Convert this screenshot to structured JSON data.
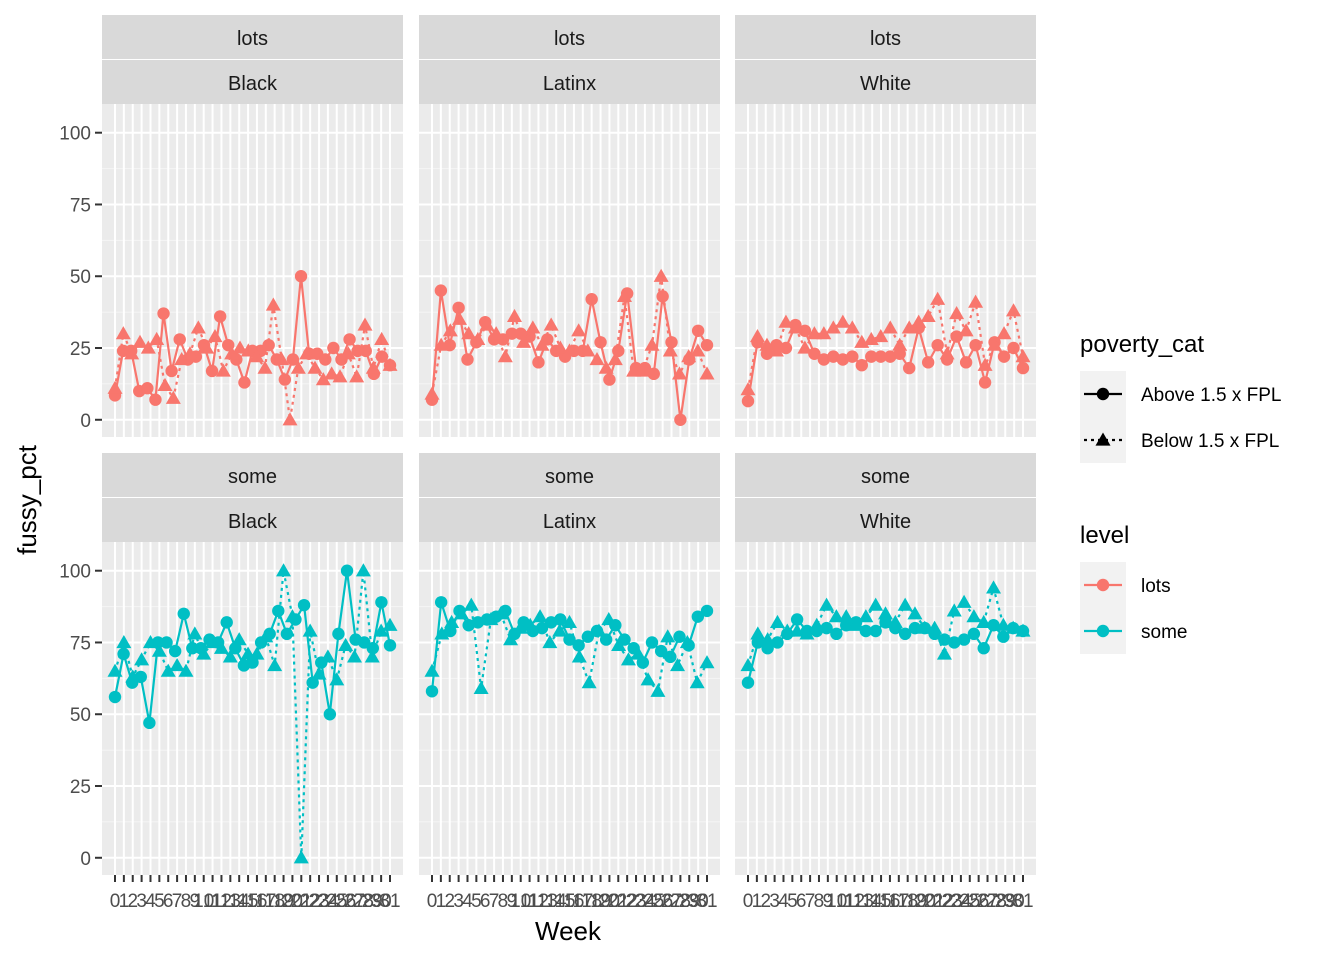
{
  "chart_data": {
    "type": "line",
    "facet_rows": [
      "lots",
      "some"
    ],
    "facet_cols": [
      "Black",
      "Latinx",
      "White"
    ],
    "xlabel": "Week",
    "ylabel": "fussy_pct",
    "ylim": [
      0,
      100
    ],
    "y_ticks": [
      "0",
      "25",
      "50",
      "75",
      "100"
    ],
    "x_tick_labels": [
      "0",
      "1",
      "2",
      "3",
      "4",
      "5",
      "6",
      "7",
      "8",
      "9",
      "10",
      "11",
      "12",
      "13",
      "14",
      "15",
      "16",
      "17",
      "18",
      "19",
      "20",
      "21",
      "22",
      "23",
      "24",
      "25",
      "26",
      "27",
      "28",
      "29",
      "30",
      "31"
    ],
    "grid": true,
    "legend_position": "right",
    "legends": [
      {
        "title": "poverty_cat",
        "entries": [
          {
            "label": "Above 1.5 x FPL",
            "shape": "circle",
            "linetype": "solid"
          },
          {
            "label": "Below 1.5 x FPL",
            "shape": "triangle",
            "linetype": "dotted"
          }
        ]
      },
      {
        "title": "level",
        "entries": [
          {
            "label": "lots",
            "color": "#F8766D"
          },
          {
            "label": "some",
            "color": "#00BFC4"
          }
        ]
      }
    ],
    "colors": {
      "lots": "#F8766D",
      "some": "#00BFC4",
      "strip_bg": "#D9D9D9",
      "panel_bg": "#EBEBEB"
    },
    "panels": [
      {
        "row": "lots",
        "col": "Black",
        "series": [
          {
            "poverty_cat": "Above 1.5 x FPL",
            "values": [
              8.5,
              24,
              24,
              10,
              11,
              7,
              37,
              17,
              28,
              21,
              22,
              26,
              17,
              36,
              26,
              21,
              13,
              24,
              24,
              26,
              21,
              14,
              21,
              50,
              23,
              23,
              21,
              25,
              21,
              28,
              24,
              24,
              16,
              22,
              19
            ]
          },
          {
            "poverty_cat": "Below 1.5 x FPL",
            "values": [
              11,
              30,
              23,
              27,
              25,
              28,
              12,
              7.5,
              21,
              23,
              32,
              25,
              29,
              17,
              23,
              25,
              24,
              22,
              18,
              40,
              21,
              0,
              18,
              23,
              18,
              14,
              16,
              15,
              23,
              15,
              33,
              18,
              28,
              19
            ]
          }
        ]
      },
      {
        "row": "lots",
        "col": "Latinx",
        "series": [
          {
            "poverty_cat": "Above 1.5 x FPL",
            "values": [
              7,
              45,
              26,
              39,
              21,
              27,
              34,
              28,
              28,
              30,
              30,
              29,
              20,
              28,
              24,
              22,
              24,
              24,
              42,
              27,
              14,
              24,
              44,
              18,
              18,
              16,
              43,
              27,
              0,
              21,
              31,
              26
            ]
          },
          {
            "poverty_cat": "Below 1.5 x FPL",
            "values": [
              9,
              26,
              31,
              35,
              30,
              28,
              33,
              30,
              22,
              36,
              27,
              32,
              26,
              33,
              25,
              24,
              31,
              24,
              21,
              18,
              21,
              43,
              17,
              17,
              26,
              50,
              24,
              16,
              22,
              24,
              16
            ]
          }
        ]
      },
      {
        "row": "lots",
        "col": "White",
        "series": [
          {
            "poverty_cat": "Above 1.5 x FPL",
            "values": [
              6.5,
              27,
              23,
              26,
              25,
              33,
              31,
              23,
              21,
              22,
              21,
              22,
              19,
              22,
              22,
              22,
              23,
              18,
              32,
              20,
              26,
              21,
              29,
              20,
              26,
              13,
              27,
              22,
              25,
              18
            ]
          },
          {
            "poverty_cat": "Below 1.5 x FPL",
            "values": [
              10.5,
              29,
              26,
              24,
              34,
              32,
              25,
              30,
              30,
              32,
              34,
              32,
              27,
              28,
              29,
              32,
              26,
              32,
              34,
              36,
              42,
              23,
              37,
              31,
              41,
              19,
              26,
              30,
              38,
              22
            ]
          }
        ]
      },
      {
        "row": "some",
        "col": "Black",
        "series": [
          {
            "poverty_cat": "Above 1.5 x FPL",
            "values": [
              56,
              71,
              61,
              63,
              47,
              75,
              75,
              72,
              85,
              73,
              73,
              76,
              75,
              82,
              73,
              67,
              68,
              75,
              78,
              86,
              78,
              83,
              88,
              61,
              68,
              50,
              78,
              100,
              76,
              75,
              73,
              89,
              74
            ]
          },
          {
            "poverty_cat": "Below 1.5 x FPL",
            "values": [
              65,
              75,
              63,
              69,
              75,
              72,
              65,
              67,
              65,
              78,
              71,
              75,
              73,
              70,
              76,
              71,
              71,
              77,
              67,
              100,
              84,
              0,
              79,
              64,
              70,
              62,
              74,
              70,
              100,
              70,
              79,
              81
            ]
          }
        ]
      },
      {
        "row": "some",
        "col": "Latinx",
        "series": [
          {
            "poverty_cat": "Above 1.5 x FPL",
            "values": [
              58,
              89,
              79,
              86,
              81,
              82,
              83,
              84,
              86,
              78,
              82,
              79,
              80,
              82,
              83,
              76,
              74,
              77,
              79,
              76,
              81,
              76,
              73,
              68,
              75,
              72,
              70,
              77,
              74,
              84,
              86
            ]
          },
          {
            "poverty_cat": "Below 1.5 x FPL",
            "values": [
              65,
              78,
              82,
              85,
              88,
              59,
              83,
              85,
              76,
              80,
              81,
              84,
              75,
              79,
              82,
              70,
              61,
              79,
              83,
              74,
              69,
              71,
              62,
              58,
              77,
              67,
              75,
              61,
              68
            ]
          }
        ]
      },
      {
        "row": "some",
        "col": "White",
        "series": [
          {
            "poverty_cat": "Above 1.5 x FPL",
            "values": [
              61,
              75,
              73,
              75,
              78,
              83,
              79,
              79,
              80,
              78,
              81,
              82,
              79,
              79,
              82,
              80,
              78,
              80,
              80,
              78,
              76,
              75,
              76,
              78,
              73,
              81,
              77,
              80,
              79
            ]
          },
          {
            "poverty_cat": "Below 1.5 x FPL",
            "values": [
              67,
              78,
              76,
              82,
              79,
              79,
              78,
              81,
              88,
              84,
              84,
              81,
              84,
              88,
              85,
              82,
              88,
              85,
              80,
              80,
              71,
              86,
              89,
              84,
              82,
              94,
              81,
              80,
              79
            ]
          }
        ]
      }
    ]
  }
}
